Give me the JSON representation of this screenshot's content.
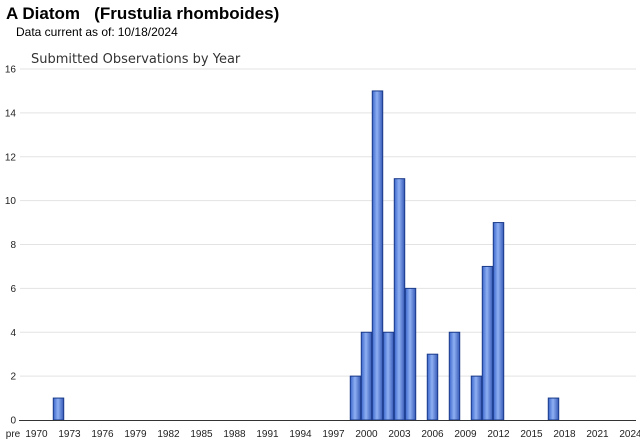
{
  "header": {
    "title": "A Diatom   (Frustulia rhomboides)",
    "date_label": "Data current as of:",
    "date_value": "10/18/2024"
  },
  "chart_data": {
    "type": "bar",
    "title": "Submitted Observations by Year",
    "xlabel": "",
    "ylabel": "",
    "ylim": [
      0,
      16
    ],
    "yticks": [
      0,
      2,
      4,
      6,
      8,
      10,
      12,
      14,
      16
    ],
    "grid": true,
    "legend": "none",
    "bar_color": "#4f80e0",
    "bar_border": "#1a3a8a",
    "x_tick_labels": [
      "pre",
      "1970",
      "1973",
      "1976",
      "1979",
      "1982",
      "1985",
      "1988",
      "1991",
      "1994",
      "1997",
      "2000",
      "2003",
      "2006",
      "2009",
      "2012",
      "2015",
      "2018",
      "2021",
      "2024"
    ],
    "categories": [
      "pre",
      "1970",
      "1971",
      "1972",
      "1973",
      "1974",
      "1975",
      "1976",
      "1977",
      "1978",
      "1979",
      "1980",
      "1981",
      "1982",
      "1983",
      "1984",
      "1985",
      "1986",
      "1987",
      "1988",
      "1989",
      "1990",
      "1991",
      "1992",
      "1993",
      "1994",
      "1995",
      "1996",
      "1997",
      "1998",
      "1999",
      "2000",
      "2001",
      "2002",
      "2003",
      "2004",
      "2005",
      "2006",
      "2007",
      "2008",
      "2009",
      "2010",
      "2011",
      "2012",
      "2013",
      "2014",
      "2015",
      "2016",
      "2017",
      "2018",
      "2019",
      "2020",
      "2021",
      "2022",
      "2023",
      "2024"
    ],
    "values": [
      0,
      0,
      0,
      1,
      0,
      0,
      0,
      0,
      0,
      0,
      0,
      0,
      0,
      0,
      0,
      0,
      0,
      0,
      0,
      0,
      0,
      0,
      0,
      0,
      0,
      0,
      0,
      0,
      0,
      0,
      2,
      4,
      15,
      4,
      11,
      6,
      0,
      3,
      0,
      4,
      0,
      2,
      7,
      9,
      0,
      0,
      0,
      0,
      1,
      0,
      0,
      0,
      0,
      0,
      0,
      0
    ]
  }
}
